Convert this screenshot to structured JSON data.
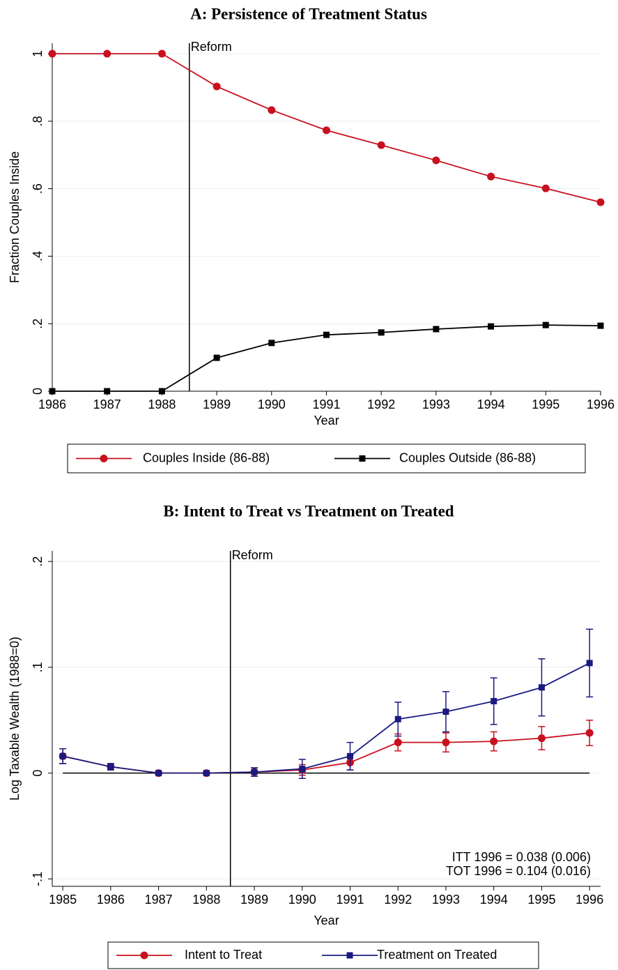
{
  "chart_data": [
    {
      "type": "line",
      "title": "A: Persistence of Treatment Status",
      "x_label": "Year",
      "y_label": "Fraction Couples Inside",
      "x": [
        1986,
        1987,
        1988,
        1989,
        1990,
        1991,
        1992,
        1993,
        1994,
        1995,
        1996
      ],
      "xlim": [
        1986,
        1996
      ],
      "xticks": [
        1986,
        1987,
        1988,
        1989,
        1990,
        1991,
        1992,
        1993,
        1994,
        1995,
        1996
      ],
      "ylim": [
        0,
        1
      ],
      "yticks": [
        0,
        {
          "value": 0.2,
          "label": ".2"
        },
        {
          "value": 0.4,
          "label": ".4"
        },
        {
          "value": 0.6,
          "label": ".6"
        },
        {
          "value": 0.8,
          "label": ".8"
        },
        1
      ],
      "grid": true,
      "reform": {
        "label": "Reform",
        "x": 1988.5
      },
      "series": [
        {
          "name": "Couples Inside (86-88)",
          "color": "#c8101e",
          "marker": "circle",
          "values": [
            1,
            1,
            1,
            0.903,
            0.833,
            0.773,
            0.729,
            0.684,
            0.636,
            0.601,
            0.56
          ]
        },
        {
          "name": "Couples Outside (86-88)",
          "color": "#000000",
          "marker": "square",
          "values": [
            0,
            0,
            0,
            0.099,
            0.143,
            0.167,
            0.174,
            0.184,
            0.192,
            0.196,
            0.194
          ]
        }
      ]
    },
    {
      "type": "errorline",
      "title": "B: Intent to Treat vs Treatment on Treated",
      "x_label": "Year",
      "y_label": "Log Taxable Wealth (1988=0)",
      "x": [
        1985,
        1986,
        1987,
        1988,
        1989,
        1990,
        1991,
        1992,
        1993,
        1994,
        1995,
        1996
      ],
      "xlim": [
        1984.78,
        1996.23
      ],
      "xticks": [
        1985,
        1986,
        1987,
        1988,
        1989,
        1990,
        1991,
        1992,
        1993,
        1994,
        1995,
        1996
      ],
      "ylim": [
        -0.107,
        0.21
      ],
      "yticks": [
        {
          "value": -0.1,
          "label": "-.1"
        },
        0,
        {
          "value": 0.1,
          "label": ".1"
        },
        {
          "value": 0.2,
          "label": ".2"
        }
      ],
      "grid": true,
      "reform": {
        "label": "Reform",
        "x": 1988.5
      },
      "notes": [
        "ITT 1996 = 0.038 (0.006)",
        "TOT 1996 = 0.104 (0.016)"
      ],
      "series": [
        {
          "name": "Intent to Treat",
          "color": "#c8101e",
          "marker": "circle",
          "values": [
            0.016,
            0.006,
            0,
            0,
            0.001,
            0.003,
            0.01,
            0.029,
            0.029,
            0.03,
            0.033,
            0.038
          ],
          "errors": [
            0.007,
            0.003,
            0.001,
            0,
            0.004,
            0.005,
            0.007,
            0.008,
            0.009,
            0.009,
            0.011,
            0.012
          ]
        },
        {
          "name": "Treatment on Treated",
          "color": "#1a1a80",
          "marker": "square",
          "values": [
            0.016,
            0.006,
            0,
            0,
            0.001,
            0.004,
            0.016,
            0.051,
            0.058,
            0.068,
            0.081,
            0.104
          ],
          "errors": [
            0.007,
            0.003,
            0.001,
            0,
            0.004,
            0.009,
            0.013,
            0.016,
            0.019,
            0.022,
            0.027,
            0.032
          ]
        }
      ]
    }
  ]
}
